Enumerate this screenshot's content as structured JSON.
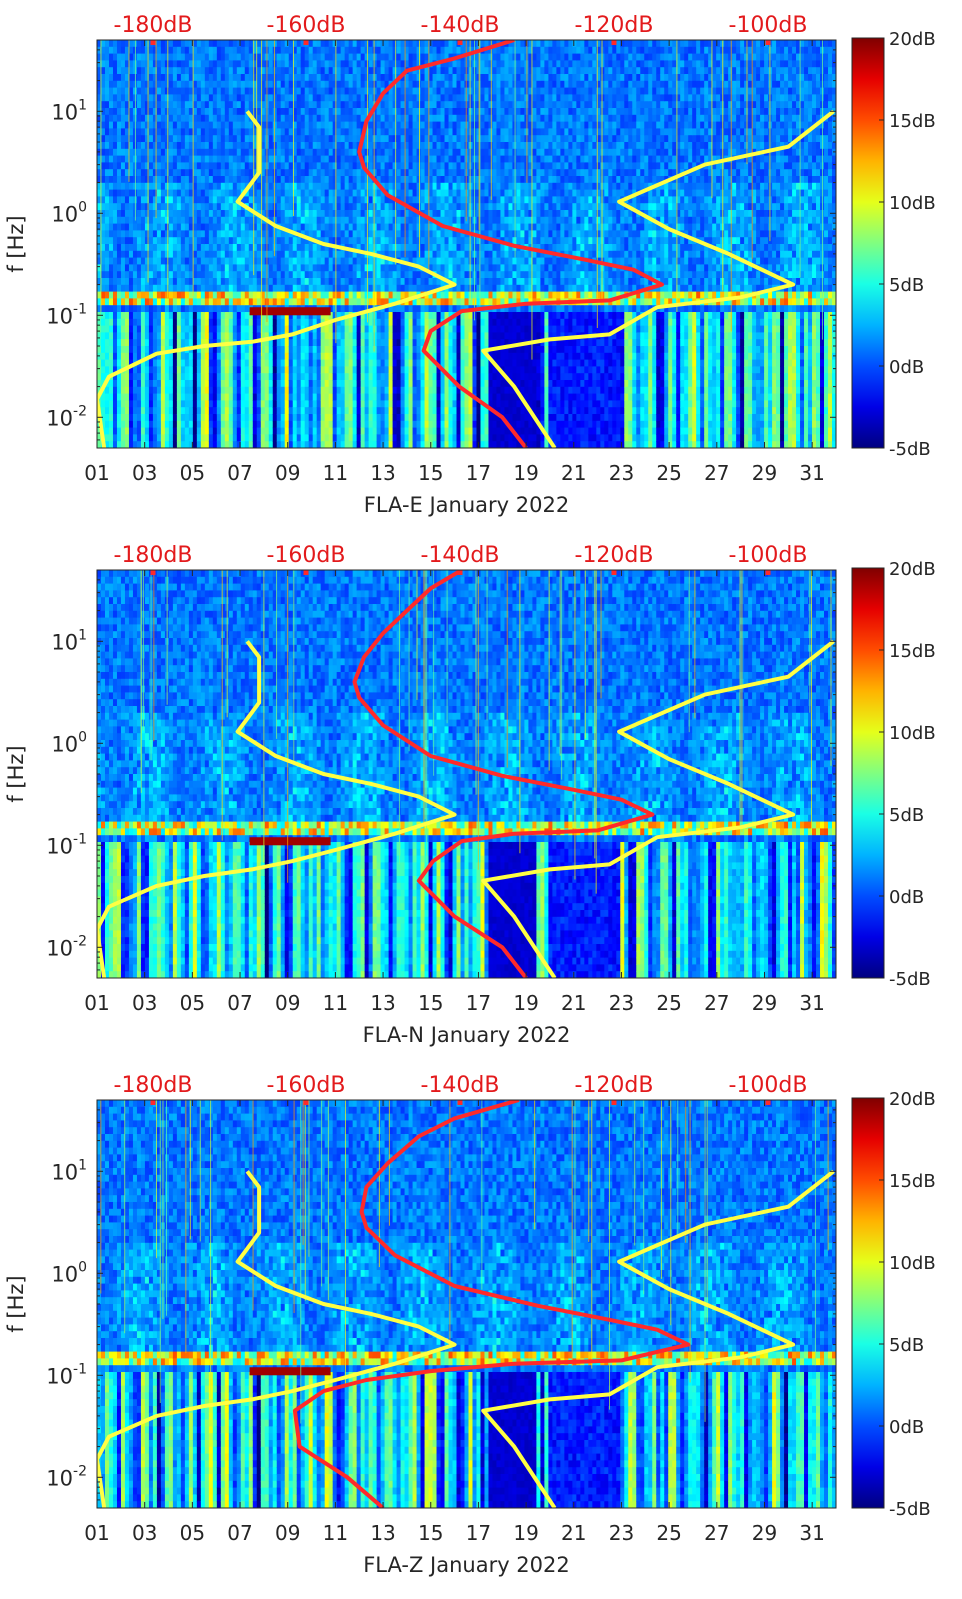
{
  "chart_data": [
    {
      "type": "heatmap",
      "title": "",
      "xlabel": "FLA-E January 2022",
      "ylabel": "f [Hz]",
      "x_ticks": [
        "01",
        "03",
        "05",
        "07",
        "09",
        "11",
        "13",
        "15",
        "17",
        "19",
        "21",
        "23",
        "25",
        "27",
        "29",
        "31"
      ],
      "y_ticks": [
        "10^-2",
        "10^-1",
        "10^0",
        "10^1"
      ],
      "y_scale": "log",
      "ylim": [
        0.005,
        50
      ],
      "xlim": [
        1,
        32
      ],
      "top_axis_ticks": [
        "-180dB",
        "-160dB",
        "-140dB",
        "-120dB",
        "-100dB"
      ],
      "colorbar": {
        "ticks": [
          "20dB",
          "15dB",
          "10dB",
          "5dB",
          "0dB",
          "-5dB"
        ],
        "range": [
          -5,
          20
        ],
        "colormap": "jet"
      },
      "overlay_lines": [
        {
          "color": "#ffff44",
          "points": [
            [
              7.3,
              10
            ],
            [
              7.8,
              7
            ],
            [
              7.8,
              2.5
            ],
            [
              6.9,
              1.3
            ],
            [
              8.5,
              0.75
            ],
            [
              10.5,
              0.5
            ],
            [
              12.5,
              0.4
            ],
            [
              14.5,
              0.3
            ],
            [
              16,
              0.2
            ],
            [
              13.5,
              0.13
            ],
            [
              11,
              0.09
            ],
            [
              9.2,
              0.065
            ],
            [
              7.5,
              0.055
            ],
            [
              5.5,
              0.05
            ],
            [
              3.5,
              0.042
            ],
            [
              1.5,
              0.025
            ],
            [
              1,
              0.015
            ],
            [
              1.3,
              0.005
            ]
          ]
        },
        {
          "color": "#ffff44",
          "points": [
            [
              31.9,
              10
            ],
            [
              30,
              4.5
            ],
            [
              26.5,
              3
            ],
            [
              22.9,
              1.3
            ],
            [
              25,
              0.7
            ],
            [
              27.5,
              0.4
            ],
            [
              30.2,
              0.2
            ],
            [
              28,
              0.15
            ],
            [
              24.5,
              0.12
            ],
            [
              22.5,
              0.065
            ],
            [
              20,
              0.058
            ],
            [
              17.2,
              0.045
            ],
            [
              18.5,
              0.02
            ],
            [
              20.2,
              0.005
            ]
          ]
        },
        {
          "color": "#ff2a2a",
          "points": [
            [
              18.5,
              50
            ],
            [
              16,
              33
            ],
            [
              14,
              25
            ],
            [
              13,
              15
            ],
            [
              12.3,
              8
            ],
            [
              12,
              4
            ],
            [
              12.2,
              2.8
            ],
            [
              13.2,
              1.5
            ],
            [
              15.5,
              0.75
            ],
            [
              18.5,
              0.48
            ],
            [
              21.5,
              0.35
            ],
            [
              23.5,
              0.28
            ],
            [
              24.7,
              0.2
            ],
            [
              22.5,
              0.14
            ],
            [
              19,
              0.13
            ],
            [
              16.3,
              0.11
            ],
            [
              15,
              0.07
            ],
            [
              14.7,
              0.045
            ],
            [
              16.2,
              0.02
            ],
            [
              18,
              0.01
            ],
            [
              19,
              0.005
            ]
          ]
        }
      ]
    },
    {
      "type": "heatmap",
      "title": "",
      "xlabel": "FLA-N January 2022",
      "ylabel": "f [Hz]",
      "x_ticks": [
        "01",
        "03",
        "05",
        "07",
        "09",
        "11",
        "13",
        "15",
        "17",
        "19",
        "21",
        "23",
        "25",
        "27",
        "29",
        "31"
      ],
      "y_ticks": [
        "10^-2",
        "10^-1",
        "10^0",
        "10^1"
      ],
      "y_scale": "log",
      "ylim": [
        0.005,
        50
      ],
      "xlim": [
        1,
        32
      ],
      "top_axis_ticks": [
        "-180dB",
        "-160dB",
        "-140dB",
        "-120dB",
        "-100dB"
      ],
      "colorbar": {
        "ticks": [
          "20dB",
          "15dB",
          "10dB",
          "5dB",
          "0dB",
          "-5dB"
        ],
        "range": [
          -5,
          20
        ],
        "colormap": "jet"
      },
      "overlay_lines": [
        {
          "color": "#ffff44",
          "points": [
            [
              7.3,
              10
            ],
            [
              7.8,
              7
            ],
            [
              7.8,
              2.5
            ],
            [
              6.9,
              1.3
            ],
            [
              8.5,
              0.75
            ],
            [
              10.5,
              0.5
            ],
            [
              12.5,
              0.4
            ],
            [
              14.5,
              0.3
            ],
            [
              16,
              0.2
            ],
            [
              13.5,
              0.13
            ],
            [
              11,
              0.09
            ],
            [
              9.2,
              0.07
            ],
            [
              7.5,
              0.058
            ],
            [
              5.5,
              0.05
            ],
            [
              3.5,
              0.04
            ],
            [
              1.5,
              0.025
            ],
            [
              1,
              0.015
            ],
            [
              1.3,
              0.005
            ]
          ]
        },
        {
          "color": "#ffff44",
          "points": [
            [
              31.9,
              10
            ],
            [
              30,
              4.5
            ],
            [
              26.5,
              3
            ],
            [
              22.9,
              1.3
            ],
            [
              25,
              0.7
            ],
            [
              27.5,
              0.4
            ],
            [
              30.2,
              0.2
            ],
            [
              28,
              0.15
            ],
            [
              24.5,
              0.12
            ],
            [
              22.5,
              0.065
            ],
            [
              20,
              0.058
            ],
            [
              17.2,
              0.045
            ],
            [
              18.5,
              0.02
            ],
            [
              20.2,
              0.005
            ]
          ]
        },
        {
          "color": "#ff2a2a",
          "points": [
            [
              16.3,
              50
            ],
            [
              15,
              33
            ],
            [
              14,
              20
            ],
            [
              13,
              12
            ],
            [
              12.2,
              7
            ],
            [
              11.8,
              4
            ],
            [
              12,
              2.8
            ],
            [
              13,
              1.5
            ],
            [
              15,
              0.75
            ],
            [
              18,
              0.48
            ],
            [
              21,
              0.35
            ],
            [
              23,
              0.28
            ],
            [
              24.3,
              0.2
            ],
            [
              22,
              0.14
            ],
            [
              18.5,
              0.13
            ],
            [
              16.3,
              0.11
            ],
            [
              15.1,
              0.07
            ],
            [
              14.5,
              0.045
            ],
            [
              16,
              0.02
            ],
            [
              18,
              0.01
            ],
            [
              19,
              0.005
            ]
          ]
        }
      ]
    },
    {
      "type": "heatmap",
      "title": "",
      "xlabel": "FLA-Z January 2022",
      "ylabel": "f [Hz]",
      "x_ticks": [
        "01",
        "03",
        "05",
        "07",
        "09",
        "11",
        "13",
        "15",
        "17",
        "19",
        "21",
        "23",
        "25",
        "27",
        "29",
        "31"
      ],
      "y_ticks": [
        "10^-2",
        "10^-1",
        "10^0",
        "10^1"
      ],
      "y_scale": "log",
      "ylim": [
        0.005,
        50
      ],
      "xlim": [
        1,
        32
      ],
      "top_axis_ticks": [
        "-180dB",
        "-160dB",
        "-140dB",
        "-120dB",
        "-100dB"
      ],
      "colorbar": {
        "ticks": [
          "20dB",
          "15dB",
          "10dB",
          "5dB",
          "0dB",
          "-5dB"
        ],
        "range": [
          -5,
          20
        ],
        "colormap": "jet"
      },
      "overlay_lines": [
        {
          "color": "#ffff44",
          "points": [
            [
              7.3,
              10
            ],
            [
              7.8,
              7
            ],
            [
              7.8,
              2.5
            ],
            [
              6.9,
              1.3
            ],
            [
              8.5,
              0.75
            ],
            [
              10.5,
              0.5
            ],
            [
              12.5,
              0.4
            ],
            [
              14.5,
              0.3
            ],
            [
              16,
              0.2
            ],
            [
              13.5,
              0.13
            ],
            [
              11,
              0.09
            ],
            [
              9.2,
              0.07
            ],
            [
              7.5,
              0.058
            ],
            [
              5.5,
              0.05
            ],
            [
              3.5,
              0.04
            ],
            [
              1.5,
              0.025
            ],
            [
              1,
              0.015
            ],
            [
              1.3,
              0.005
            ]
          ]
        },
        {
          "color": "#ffff44",
          "points": [
            [
              31.9,
              10
            ],
            [
              30,
              4.5
            ],
            [
              26.5,
              3
            ],
            [
              22.9,
              1.3
            ],
            [
              25,
              0.7
            ],
            [
              27.5,
              0.4
            ],
            [
              30.2,
              0.2
            ],
            [
              28,
              0.15
            ],
            [
              24.5,
              0.12
            ],
            [
              22.5,
              0.065
            ],
            [
              20,
              0.058
            ],
            [
              17.2,
              0.045
            ],
            [
              18.5,
              0.02
            ],
            [
              20.2,
              0.005
            ]
          ]
        },
        {
          "color": "#ff2a2a",
          "points": [
            [
              18.7,
              50
            ],
            [
              16,
              33
            ],
            [
              14.5,
              22
            ],
            [
              13.2,
              12
            ],
            [
              12.3,
              7
            ],
            [
              12.1,
              4
            ],
            [
              12.3,
              2.8
            ],
            [
              13.5,
              1.5
            ],
            [
              16,
              0.75
            ],
            [
              19.5,
              0.48
            ],
            [
              22.5,
              0.35
            ],
            [
              24.5,
              0.28
            ],
            [
              25.8,
              0.2
            ],
            [
              23,
              0.14
            ],
            [
              18.5,
              0.13
            ],
            [
              15,
              0.11
            ],
            [
              12.3,
              0.09
            ],
            [
              10.5,
              0.07
            ],
            [
              9.3,
              0.045
            ],
            [
              9.5,
              0.02
            ],
            [
              11.5,
              0.01
            ],
            [
              13,
              0.005
            ]
          ]
        }
      ]
    }
  ]
}
